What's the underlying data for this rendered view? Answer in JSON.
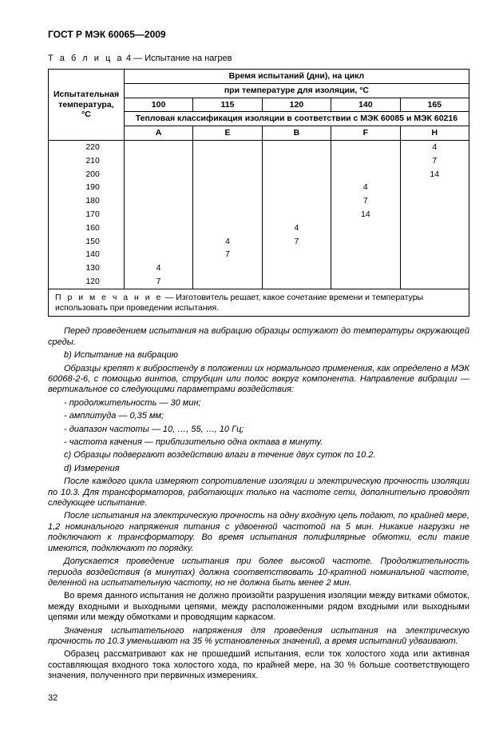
{
  "doc_code": "ГОСТ Р МЭК 60065—2009",
  "table_caption_prefix": "Т а б л и ц а",
  "table_caption_num": "4",
  "table_caption_rest": "— Испытание на нагрев",
  "headers": {
    "col0": "Испытательная температура, °С",
    "h1": "Время испытаний (дни), на цикл",
    "h2": "при температуре для изоляции, °С",
    "c100": "100",
    "c115": "115",
    "c120": "120",
    "c140": "140",
    "c165": "165",
    "h3": "Тепловая классификация изоляции в соответствии с МЭК 60085 и МЭК 60216",
    "A": "A",
    "E": "E",
    "B": "B",
    "F": "F",
    "H": "H"
  },
  "rows": [
    {
      "t": "220",
      "A": "",
      "E": "",
      "B": "",
      "F": "",
      "H": "4"
    },
    {
      "t": "210",
      "A": "",
      "E": "",
      "B": "",
      "F": "",
      "H": "7"
    },
    {
      "t": "200",
      "A": "",
      "E": "",
      "B": "",
      "F": "",
      "H": "14"
    },
    {
      "t": "190",
      "A": "",
      "E": "",
      "B": "",
      "F": "4",
      "H": ""
    },
    {
      "t": "180",
      "A": "",
      "E": "",
      "B": "",
      "F": "7",
      "H": ""
    },
    {
      "t": "170",
      "A": "",
      "E": "",
      "B": "",
      "F": "14",
      "H": ""
    },
    {
      "t": "160",
      "A": "",
      "E": "",
      "B": "4",
      "F": "",
      "H": ""
    },
    {
      "t": "150",
      "A": "",
      "E": "4",
      "B": "7",
      "F": "",
      "H": ""
    },
    {
      "t": "140",
      "A": "",
      "E": "7",
      "B": "",
      "F": "",
      "H": ""
    },
    {
      "t": "130",
      "A": "4",
      "E": "",
      "B": "",
      "F": "",
      "H": ""
    },
    {
      "t": "120",
      "A": "7",
      "E": "",
      "B": "",
      "F": "",
      "H": ""
    }
  ],
  "note_prefix": "П р и м е ч а н и е",
  "note_rest": " — Изготовитель решает, какое сочетание времени и температуры использовать при проведении испытания.",
  "paras": [
    {
      "it": true,
      "txt": "Перед проведением испытания на вибрацию образцы остужают до температуры окружающей среды."
    },
    {
      "it": true,
      "txt": "b) Испытание на вибрацию"
    },
    {
      "it": true,
      "txt": "Образцы крепят к вибростенду в положении их нормального применения, как определено в МЭК 60068-2-6, с помощью винтов, струбцин или полос вокруг компонента. Направление вибрации — вертикальное со следующими параметрами воздействия:"
    },
    {
      "it": true,
      "txt": "- продолжительность — 30 мин;"
    },
    {
      "it": true,
      "txt": "- амплитуда — 0,35 мм;"
    },
    {
      "it": true,
      "txt": "- диапазон частоты — 10, …, 55, …, 10 Гц;"
    },
    {
      "it": true,
      "txt": "- частота качения — приблизительно одна октава в минуту."
    },
    {
      "it": true,
      "txt": "c) Образцы подвергают воздействию влаги в течение двух суток по 10.2."
    },
    {
      "it": true,
      "txt": "d) Измерения"
    },
    {
      "it": true,
      "txt": "После каждого цикла измеряют сопротивление изоляции и электрическую прочность изоляции по 10.3. Для трансформаторов, работающих только на частоте сети, дополнительно проводят следующее испытание."
    },
    {
      "it": true,
      "txt": "После испытания на электрическую прочность на одну входную цепь подают, по крайней мере, 1,2 номинального напряжения питания с удвоенной частотой на 5 мин. Никакие нагрузки не подключают к трансформатору. Во время испытания полифилярные обмотки, если такие имеются, подключают по порядку."
    },
    {
      "it": true,
      "txt": "Допускается проведение испытания при более высокой частоте. Продолжительность периода воздействия (в минутах) должна соответствовать 10-кратной номинальной частоте, деленной на испытательную частоту, но не должна быть менее 2 мин."
    },
    {
      "it": false,
      "txt": "Во время данного испытания не должно произойти разрушения изоляции между витками обмоток, между входными и выходными цепями, между расположенными рядом входными или выходными цепями или между обмотками и проводящим каркасом."
    },
    {
      "it": true,
      "txt": "Значения испытательного напряжения для проведения испытания на электрическую прочность по 10.3 уменьшают на 35 % установленных значений, а время испытаний удваивают."
    },
    {
      "it": false,
      "txt": "Образец рассматривают как не прошедший испытания, если ток холостого хода или активная составляющая входного тока холостого хода, по крайней мере, на 30 % больше соответствующего значения, полученного при первичных измерениях."
    }
  ],
  "pagenum": "32"
}
